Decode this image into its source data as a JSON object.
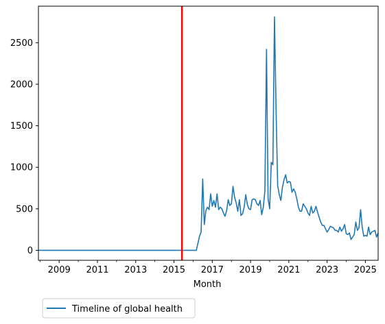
{
  "chart_data": {
    "type": "line",
    "title": "",
    "xlabel": "Month",
    "ylabel": "",
    "xlim": [
      "2007-12",
      "2025-09"
    ],
    "ylim": [
      -120,
      2940
    ],
    "grid": false,
    "legend_placement": "below-left",
    "x_ticks": [
      "2009",
      "2011",
      "2013",
      "2015",
      "2017",
      "2019",
      "2021",
      "2023",
      "2025"
    ],
    "y_ticks": [
      0,
      500,
      1000,
      1500,
      2000,
      2500
    ],
    "reference_line": {
      "x": "2015-06",
      "color": "#ff0000"
    },
    "series": [
      {
        "name": "Timeline of global health",
        "color": "#1f77b4",
        "x": [
          "2007-12",
          "2016-03",
          "2016-05",
          "2016-06",
          "2016-07",
          "2016-08",
          "2016-09",
          "2016-10",
          "2016-11",
          "2016-12",
          "2017-01",
          "2017-02",
          "2017-03",
          "2017-04",
          "2017-05",
          "2017-06",
          "2017-07",
          "2017-08",
          "2017-09",
          "2017-10",
          "2017-11",
          "2017-12",
          "2018-01",
          "2018-02",
          "2018-03",
          "2018-04",
          "2018-05",
          "2018-06",
          "2018-07",
          "2018-08",
          "2018-09",
          "2018-10",
          "2018-11",
          "2018-12",
          "2019-01",
          "2019-02",
          "2019-03",
          "2019-04",
          "2019-05",
          "2019-06",
          "2019-07",
          "2019-08",
          "2019-09",
          "2019-10",
          "2019-11",
          "2019-12",
          "2020-01",
          "2020-02",
          "2020-03",
          "2020-04",
          "2020-05",
          "2020-06",
          "2020-07",
          "2020-08",
          "2020-09",
          "2020-10",
          "2020-11",
          "2020-12",
          "2021-01",
          "2021-02",
          "2021-03",
          "2021-04",
          "2021-05",
          "2021-06",
          "2021-07",
          "2021-08",
          "2021-09",
          "2021-10",
          "2021-11",
          "2021-12",
          "2022-01",
          "2022-02",
          "2022-03",
          "2022-04",
          "2022-05",
          "2022-06",
          "2022-07",
          "2022-08",
          "2022-09",
          "2022-10",
          "2022-11",
          "2022-12",
          "2023-01",
          "2023-02",
          "2023-03",
          "2023-04",
          "2023-05",
          "2023-06",
          "2023-07",
          "2023-08",
          "2023-09",
          "2023-10",
          "2023-11",
          "2023-12",
          "2024-01",
          "2024-02",
          "2024-03",
          "2024-04",
          "2024-05",
          "2024-06",
          "2024-07",
          "2024-08",
          "2024-09",
          "2024-10",
          "2024-11",
          "2024-12",
          "2025-01",
          "2025-02",
          "2025-03",
          "2025-04",
          "2025-05",
          "2025-06",
          "2025-07",
          "2025-08",
          "2025-09"
        ],
        "values": [
          0,
          0,
          170,
          220,
          860,
          310,
          480,
          520,
          490,
          680,
          530,
          600,
          520,
          680,
          490,
          520,
          500,
          450,
          410,
          480,
          610,
          540,
          560,
          770,
          640,
          570,
          470,
          610,
          420,
          440,
          520,
          670,
          550,
          500,
          490,
          610,
          620,
          610,
          560,
          540,
          600,
          430,
          520,
          720,
          2420,
          620,
          500,
          1060,
          1030,
          2810,
          1700,
          780,
          670,
          600,
          760,
          850,
          910,
          810,
          830,
          820,
          700,
          740,
          700,
          620,
          520,
          470,
          470,
          560,
          530,
          500,
          450,
          420,
          530,
          450,
          470,
          530,
          460,
          400,
          340,
          300,
          300,
          260,
          220,
          250,
          290,
          280,
          270,
          240,
          240,
          220,
          280,
          230,
          260,
          310,
          200,
          190,
          210,
          130,
          160,
          190,
          340,
          240,
          270,
          490,
          280,
          170,
          180,
          170,
          280,
          190,
          220,
          230,
          240,
          160,
          210
        ]
      }
    ]
  }
}
